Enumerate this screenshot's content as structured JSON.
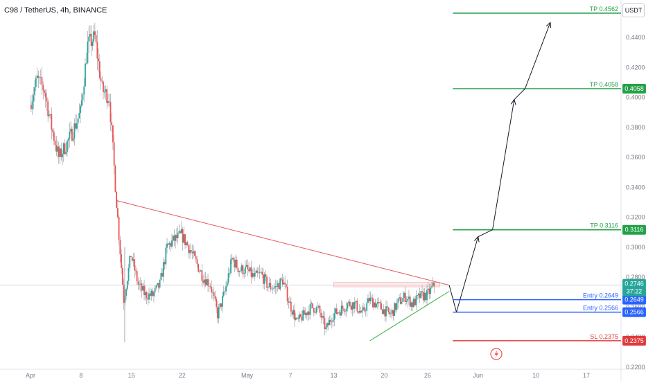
{
  "symbol_title": "C98 / TetherUS, 4h, BINANCE",
  "currency": "USDT",
  "chart_data": {
    "type": "candlestick",
    "ylim": [
      0.2185,
      0.465
    ],
    "y_ticks": [
      {
        "v": 0.44,
        "label": "0.4400"
      },
      {
        "v": 0.42,
        "label": "0.4200"
      },
      {
        "v": 0.4,
        "label": "0.4000"
      },
      {
        "v": 0.38,
        "label": "0.3800"
      },
      {
        "v": 0.36,
        "label": "0.3600"
      },
      {
        "v": 0.34,
        "label": "0.3400"
      },
      {
        "v": 0.32,
        "label": "0.3200"
      },
      {
        "v": 0.3,
        "label": "0.3000"
      },
      {
        "v": 0.28,
        "label": "0.2800"
      },
      {
        "v": 0.26,
        "label": "0.2600"
      },
      {
        "v": 0.24,
        "label": "0.2400"
      },
      {
        "v": 0.22,
        "label": "0.2200"
      }
    ],
    "x_range": [
      -1,
      77
    ],
    "x_ticks": [
      {
        "d": 0,
        "label": "Apr"
      },
      {
        "d": 7,
        "label": "8"
      },
      {
        "d": 14,
        "label": "15"
      },
      {
        "d": 21,
        "label": "22"
      },
      {
        "d": 30,
        "label": "May"
      },
      {
        "d": 36,
        "label": "7"
      },
      {
        "d": 42,
        "label": "13"
      },
      {
        "d": 49,
        "label": "20"
      },
      {
        "d": 55,
        "label": "26"
      },
      {
        "d": 62,
        "label": "Jun"
      },
      {
        "d": 70,
        "label": "10"
      },
      {
        "d": 77,
        "label": "17"
      }
    ],
    "price_path": [
      [
        0,
        0.395
      ],
      [
        1,
        0.412
      ],
      [
        2,
        0.405
      ],
      [
        3,
        0.38
      ],
      [
        4,
        0.36
      ],
      [
        5,
        0.368
      ],
      [
        6,
        0.378
      ],
      [
        7,
        0.39
      ],
      [
        8,
        0.435
      ],
      [
        9,
        0.44
      ],
      [
        10,
        0.405
      ],
      [
        11,
        0.4
      ],
      [
        12,
        0.33
      ],
      [
        13,
        0.265
      ],
      [
        14,
        0.295
      ],
      [
        15,
        0.275
      ],
      [
        16,
        0.268
      ],
      [
        17,
        0.268
      ],
      [
        18,
        0.275
      ],
      [
        19,
        0.3
      ],
      [
        20,
        0.305
      ],
      [
        21,
        0.308
      ],
      [
        22,
        0.3
      ],
      [
        23,
        0.29
      ],
      [
        24,
        0.28
      ],
      [
        25,
        0.275
      ],
      [
        26,
        0.255
      ],
      [
        27,
        0.27
      ],
      [
        28,
        0.292
      ],
      [
        29,
        0.285
      ],
      [
        30,
        0.285
      ],
      [
        31,
        0.28
      ],
      [
        32,
        0.282
      ],
      [
        33,
        0.274
      ],
      [
        34,
        0.273
      ],
      [
        35,
        0.278
      ],
      [
        36,
        0.262
      ],
      [
        37,
        0.25
      ],
      [
        38,
        0.255
      ],
      [
        39,
        0.26
      ],
      [
        40,
        0.258
      ],
      [
        41,
        0.245
      ],
      [
        42,
        0.255
      ],
      [
        43,
        0.258
      ],
      [
        44,
        0.262
      ],
      [
        45,
        0.262
      ],
      [
        46,
        0.255
      ],
      [
        47,
        0.265
      ],
      [
        48,
        0.262
      ],
      [
        49,
        0.258
      ],
      [
        50,
        0.255
      ],
      [
        51,
        0.263
      ],
      [
        52,
        0.267
      ],
      [
        53,
        0.262
      ],
      [
        54,
        0.267
      ],
      [
        55,
        0.268
      ],
      [
        56,
        0.2746
      ]
    ],
    "levels": [
      {
        "label": "TP 0.4562",
        "value": 0.4562,
        "tag": "",
        "color": "#24a148"
      },
      {
        "label": "TP 0.4058",
        "value": 0.4058,
        "tag": "0.4058",
        "color": "#24a148"
      },
      {
        "label": "TP 0.3116",
        "value": 0.3116,
        "tag": "0.3116",
        "color": "#24a148"
      },
      {
        "label": "Entry 0.2649",
        "value": 0.2649,
        "tag": "0.2649",
        "color": "#2962ff"
      },
      {
        "label": "Entry 0.2566",
        "value": 0.2566,
        "tag": "0.2566",
        "color": "#2962ff"
      },
      {
        "label": "SL 0.2375",
        "value": 0.2375,
        "tag": "0.2375",
        "color": "#e03a3e"
      }
    ],
    "current_price": {
      "value": 0.2746,
      "label": "0.2746",
      "countdown": "37:22"
    },
    "resistance_line": {
      "from": [
        12,
        0.331
      ],
      "to": [
        58,
        0.2746
      ],
      "color": "#e8545a"
    },
    "support_line": {
      "from": [
        47,
        0.2375
      ],
      "to": [
        58,
        0.2705
      ],
      "color": "#3cb043"
    },
    "projection_path": [
      [
        58,
        0.2746
      ],
      [
        59,
        0.2566
      ],
      [
        62,
        0.307
      ],
      [
        64,
        0.3116
      ],
      [
        67,
        0.3985
      ],
      [
        68.5,
        0.4058
      ],
      [
        72,
        0.45
      ]
    ],
    "colors": {
      "up": "#26a69a",
      "down": "#ef5350",
      "wick": "#b2b5be",
      "axis_text": "#787b86"
    }
  }
}
